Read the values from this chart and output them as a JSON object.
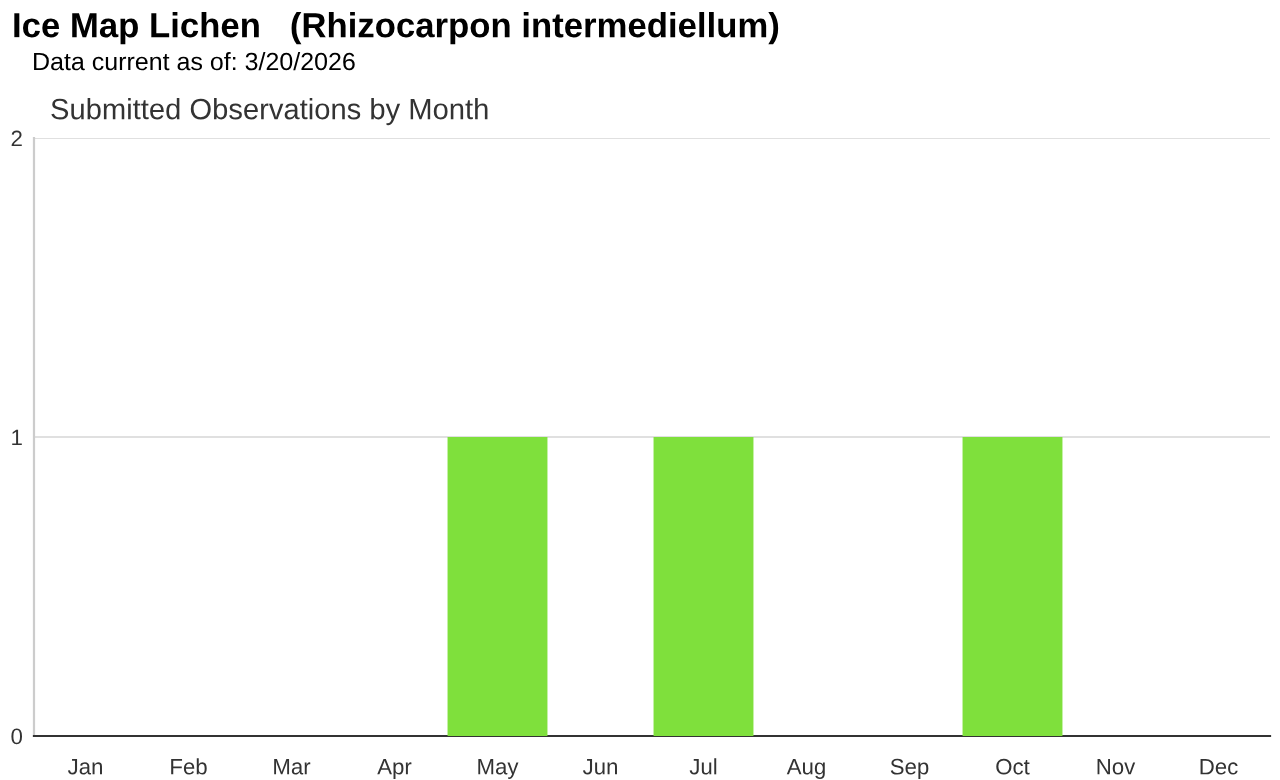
{
  "chart_data": {
    "type": "bar",
    "title": "Ice Map Lichen   (Rhizocarpon intermediellum)",
    "subtitle": "Data current as of: 3/20/2026",
    "annotations": [
      "Submitted Observations by Month"
    ],
    "categories": [
      "Jan",
      "Feb",
      "Mar",
      "Apr",
      "May",
      "Jun",
      "Jul",
      "Aug",
      "Sep",
      "Oct",
      "Nov",
      "Dec"
    ],
    "values": [
      0,
      0,
      0,
      0,
      1,
      0,
      1,
      0,
      0,
      1,
      0,
      0
    ],
    "color": "#7fe03c",
    "ylim": [
      0,
      2
    ],
    "yticks": [
      0,
      1,
      2
    ],
    "grid": "y"
  }
}
